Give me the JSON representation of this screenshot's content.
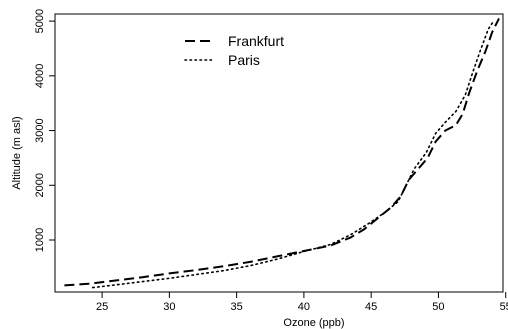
{
  "chart_data": {
    "type": "line",
    "xlabel": "Ozone (ppb)",
    "ylabel": "Altitude (m asl)",
    "xlim": [
      21.5,
      54.8
    ],
    "ylim": [
      50,
      5130
    ],
    "xticks": [
      25,
      30,
      35,
      40,
      45,
      50,
      55
    ],
    "xtick_labels": [
      "25",
      "30",
      "35",
      "40",
      "45",
      "50",
      "55"
    ],
    "yticks": [
      1000,
      2000,
      3000,
      4000,
      5000
    ],
    "ytick_labels": [
      "1000",
      "2000",
      "3000",
      "4000",
      "5000"
    ],
    "grid": false,
    "legend_position": "top-center",
    "series": [
      {
        "name": "Frankfurt",
        "line_style": "dashed",
        "color": "#000000",
        "points": [
          [
            22.2,
            170
          ],
          [
            24,
            200
          ],
          [
            26,
            260
          ],
          [
            28,
            320
          ],
          [
            30,
            390
          ],
          [
            32,
            450
          ],
          [
            34,
            520
          ],
          [
            36,
            600
          ],
          [
            38,
            700
          ],
          [
            40,
            800
          ],
          [
            42,
            900
          ],
          [
            43.5,
            1050
          ],
          [
            44.5,
            1200
          ],
          [
            45.5,
            1400
          ],
          [
            46.5,
            1600
          ],
          [
            47.2,
            1800
          ],
          [
            47.8,
            2100
          ],
          [
            48.5,
            2300
          ],
          [
            49.2,
            2500
          ],
          [
            49.8,
            2800
          ],
          [
            50.5,
            3000
          ],
          [
            51.3,
            3100
          ],
          [
            51.8,
            3300
          ],
          [
            52.3,
            3700
          ],
          [
            52.9,
            4100
          ],
          [
            53.5,
            4450
          ],
          [
            54,
            4800
          ],
          [
            54.5,
            5050
          ]
        ]
      },
      {
        "name": "Paris",
        "line_style": "dotted",
        "color": "#000000",
        "points": [
          [
            24.3,
            130
          ],
          [
            26,
            180
          ],
          [
            28,
            240
          ],
          [
            30,
            300
          ],
          [
            32,
            370
          ],
          [
            34,
            440
          ],
          [
            36,
            530
          ],
          [
            38,
            650
          ],
          [
            40,
            790
          ],
          [
            42,
            920
          ],
          [
            43.5,
            1100
          ],
          [
            44.8,
            1300
          ],
          [
            46,
            1500
          ],
          [
            47,
            1700
          ],
          [
            47.6,
            2000
          ],
          [
            48.2,
            2300
          ],
          [
            49.1,
            2600
          ],
          [
            49.8,
            2950
          ],
          [
            50.5,
            3150
          ],
          [
            51.3,
            3350
          ],
          [
            52,
            3650
          ],
          [
            52.6,
            4100
          ],
          [
            53.1,
            4450
          ],
          [
            53.7,
            4850
          ],
          [
            54.1,
            5000
          ]
        ]
      }
    ]
  }
}
